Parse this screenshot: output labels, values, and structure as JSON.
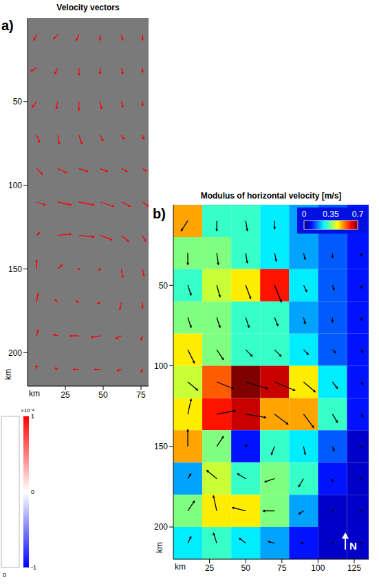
{
  "chart_data": [
    {
      "type": "quiver",
      "panel_label": "a)",
      "title": "Velocity vectors",
      "x_label": "km",
      "y_label": "km",
      "xlim": [
        0,
        80
      ],
      "ylim": [
        0,
        220
      ],
      "xticks": [
        25,
        50,
        75
      ],
      "yticks": [
        50,
        100,
        150,
        200
      ],
      "color": "#ff0000",
      "vectors": {
        "x": [
          6,
          20,
          34,
          48,
          62,
          76
        ],
        "y": [
          10,
          30,
          50,
          70,
          90,
          110,
          130,
          150,
          170,
          190,
          210
        ],
        "u": [
          [
            -0.1,
            -0.15,
            -0.1,
            0,
            0.05,
            0
          ],
          [
            -0.2,
            -0.1,
            0,
            0,
            0.05,
            0
          ],
          [
            -0.15,
            -0.05,
            0,
            0.05,
            0.05,
            0
          ],
          [
            0.1,
            0.05,
            0.1,
            0.1,
            0.1,
            0.05
          ],
          [
            0.2,
            0.3,
            0.3,
            0.25,
            0.2,
            0.15
          ],
          [
            0.3,
            0.45,
            0.5,
            0.45,
            0.3,
            0.2
          ],
          [
            0.1,
            0.45,
            0.5,
            0.4,
            0.25,
            0.1
          ],
          [
            0,
            0.15,
            0.05,
            -0.05,
            0.05,
            0.05
          ],
          [
            0.05,
            -0.1,
            -0.1,
            -0.1,
            -0.05,
            0
          ],
          [
            0.05,
            -0.15,
            -0.3,
            -0.3,
            -0.2,
            -0.05
          ],
          [
            0,
            -0.1,
            -0.2,
            -0.2,
            -0.15,
            -0.05
          ]
        ],
        "v": [
          [
            -0.2,
            -0.15,
            -0.2,
            -0.2,
            -0.2,
            -0.2
          ],
          [
            -0.1,
            -0.2,
            -0.25,
            -0.2,
            -0.2,
            -0.15
          ],
          [
            -0.2,
            -0.25,
            -0.3,
            -0.25,
            -0.2,
            -0.15
          ],
          [
            -0.25,
            -0.3,
            -0.3,
            -0.2,
            -0.15,
            -0.15
          ],
          [
            -0.2,
            -0.15,
            -0.1,
            -0.1,
            -0.1,
            -0.1
          ],
          [
            -0.1,
            -0.1,
            -0.1,
            -0.15,
            -0.15,
            -0.15
          ],
          [
            0.1,
            0.05,
            -0.05,
            -0.15,
            -0.2,
            -0.2
          ],
          [
            0.3,
            0.15,
            0,
            -0.05,
            -0.3,
            -0.25
          ],
          [
            0.3,
            0.1,
            0.05,
            -0.05,
            -0.25,
            -0.2
          ],
          [
            0.2,
            0.05,
            0,
            -0.05,
            -0.1,
            -0.15
          ],
          [
            0.15,
            0.05,
            0,
            0,
            -0.05,
            -0.1
          ]
        ]
      }
    },
    {
      "type": "heatmap",
      "panel_label": "b)",
      "title": "Modulus of horizontal velocity [m/s]",
      "x_label": "km",
      "y_label": "km",
      "xlim": [
        0,
        135
      ],
      "ylim": [
        0,
        220
      ],
      "xticks": [
        25,
        50,
        75,
        100,
        125
      ],
      "yticks": [
        50,
        100,
        150,
        200
      ],
      "color": "#000000",
      "north_label": "N",
      "colorbar": {
        "range": [
          0,
          0.7
        ],
        "ticks": [
          0,
          0.35,
          0.7
        ]
      },
      "cells": {
        "x": [
          10,
          30,
          50,
          70,
          90,
          110,
          130
        ],
        "y": [
          10,
          30,
          50,
          70,
          90,
          110,
          130,
          150,
          170,
          190,
          210
        ],
        "values": [
          [
            0.5,
            0.3,
            0.3,
            0.25,
            0.2,
            0.15,
            0.1
          ],
          [
            0.35,
            0.35,
            0.3,
            0.25,
            0.2,
            0.15,
            0.1
          ],
          [
            0.3,
            0.4,
            0.45,
            0.6,
            0.25,
            0.15,
            0.1
          ],
          [
            0.35,
            0.35,
            0.3,
            0.3,
            0.2,
            0.15,
            0.1
          ],
          [
            0.45,
            0.35,
            0.3,
            0.3,
            0.25,
            0.15,
            0.1
          ],
          [
            0.4,
            0.55,
            0.7,
            0.65,
            0.45,
            0.25,
            0.1
          ],
          [
            0.45,
            0.6,
            0.65,
            0.5,
            0.5,
            0.3,
            0.1
          ],
          [
            0.5,
            0.35,
            0.1,
            0.3,
            0.25,
            0.15,
            0.05
          ],
          [
            0.2,
            0.4,
            0.3,
            0.35,
            0.3,
            0.1,
            0.05
          ],
          [
            0.35,
            0.45,
            0.45,
            0.35,
            0.2,
            0.05,
            0.05
          ],
          [
            0.25,
            0.3,
            0.25,
            0.2,
            0.1,
            0.05,
            0.05
          ]
        ]
      },
      "vectors": {
        "x": [
          10,
          30,
          50,
          70,
          90,
          110,
          130
        ],
        "y": [
          10,
          30,
          50,
          70,
          90,
          110,
          130,
          150,
          170,
          190,
          210
        ],
        "u": [
          [
            -0.2,
            0,
            0.05,
            0,
            0,
            0,
            0
          ],
          [
            0,
            0.05,
            0.05,
            0.05,
            0.05,
            0,
            0
          ],
          [
            0.1,
            0.1,
            0.15,
            0.2,
            0.1,
            0.05,
            0
          ],
          [
            0.1,
            0.1,
            0.1,
            0.1,
            0.05,
            0,
            0
          ],
          [
            0.2,
            0.2,
            0.2,
            0.2,
            0.15,
            0.1,
            0.05
          ],
          [
            0.3,
            0.5,
            0.65,
            0.6,
            0.35,
            0.15,
            0.05
          ],
          [
            0.1,
            0.55,
            0.6,
            0.4,
            0.3,
            0.15,
            0.05
          ],
          [
            0,
            0.2,
            0.05,
            -0.1,
            0.05,
            0.05,
            0
          ],
          [
            0.1,
            -0.3,
            -0.25,
            -0.3,
            -0.15,
            0,
            0
          ],
          [
            0.2,
            -0.1,
            -0.4,
            -0.35,
            -0.15,
            0,
            0
          ],
          [
            0.1,
            -0.1,
            -0.2,
            -0.2,
            -0.1,
            0,
            0
          ]
        ],
        "v": [
          [
            -0.3,
            -0.3,
            -0.3,
            -0.25,
            -0.2,
            -0.15,
            -0.1
          ],
          [
            -0.35,
            -0.35,
            -0.3,
            -0.25,
            -0.2,
            -0.15,
            -0.1
          ],
          [
            -0.3,
            -0.35,
            -0.4,
            -0.5,
            -0.2,
            -0.15,
            -0.1
          ],
          [
            -0.3,
            -0.3,
            -0.3,
            -0.25,
            -0.2,
            -0.15,
            -0.1
          ],
          [
            -0.4,
            -0.3,
            -0.2,
            -0.2,
            -0.15,
            -0.1,
            -0.1
          ],
          [
            -0.25,
            -0.2,
            -0.2,
            -0.25,
            -0.3,
            -0.2,
            -0.1
          ],
          [
            0.45,
            0.1,
            -0.1,
            -0.3,
            -0.4,
            -0.25,
            -0.1
          ],
          [
            0.5,
            0.3,
            0.05,
            -0.25,
            -0.25,
            -0.15,
            -0.05
          ],
          [
            0.15,
            0.25,
            0.15,
            -0.1,
            -0.25,
            -0.1,
            -0.05
          ],
          [
            0.3,
            0.45,
            0.1,
            0,
            -0.1,
            -0.05,
            -0.05
          ],
          [
            0.2,
            0.3,
            0.15,
            0.05,
            0,
            -0.05,
            -0.05
          ]
        ]
      }
    },
    {
      "type": "colorbar",
      "xticks": [
        0
      ],
      "colorbar": {
        "range": [
          -1,
          1
        ],
        "ticks": [
          -1,
          0,
          1
        ],
        "label": "×10⁻⁴"
      }
    }
  ]
}
